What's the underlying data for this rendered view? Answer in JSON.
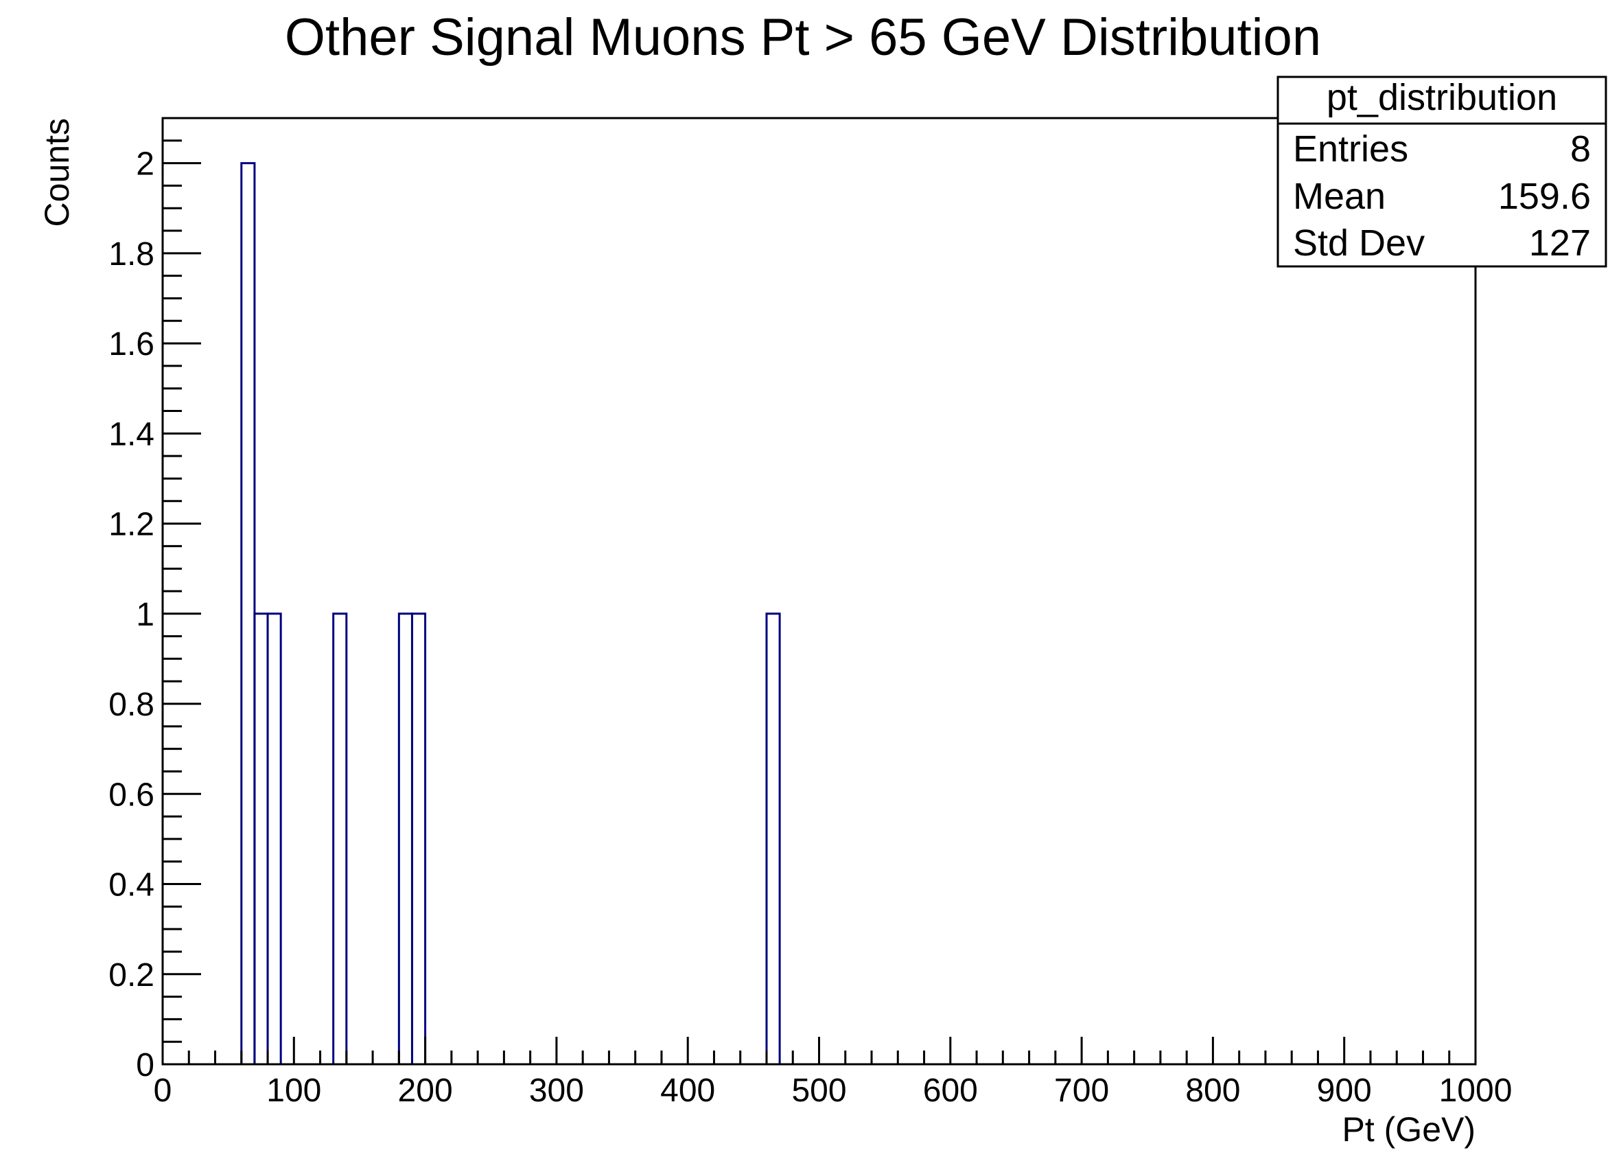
{
  "chart_data": {
    "type": "bar",
    "title": "Other Signal Muons Pt > 65 GeV Distribution",
    "xlabel": "Pt (GeV)",
    "ylabel": "Counts",
    "xlim": [
      0,
      1000
    ],
    "ylim": [
      0,
      2.1
    ],
    "bin_width": 10,
    "x_ticks": [
      "0",
      "100",
      "200",
      "300",
      "400",
      "500",
      "600",
      "700",
      "800",
      "900",
      "1000"
    ],
    "y_ticks": [
      "0",
      "0.2",
      "0.4",
      "0.6",
      "0.8",
      "1",
      "1.2",
      "1.4",
      "1.6",
      "1.8",
      "2"
    ],
    "bins": [
      {
        "low": 60,
        "high": 70,
        "count": 2
      },
      {
        "low": 70,
        "high": 80,
        "count": 1
      },
      {
        "low": 80,
        "high": 90,
        "count": 1
      },
      {
        "low": 130,
        "high": 140,
        "count": 1
      },
      {
        "low": 180,
        "high": 190,
        "count": 1
      },
      {
        "low": 190,
        "high": 200,
        "count": 1
      },
      {
        "low": 460,
        "high": 470,
        "count": 1
      }
    ],
    "line_color": "#000080",
    "grid": false,
    "legend": "top-right"
  },
  "stats_box": {
    "name": "pt_distribution",
    "rows": [
      {
        "label": "Entries",
        "value": "8"
      },
      {
        "label": "Mean",
        "value": "159.6"
      },
      {
        "label": "Std Dev",
        "value": "127"
      }
    ]
  }
}
